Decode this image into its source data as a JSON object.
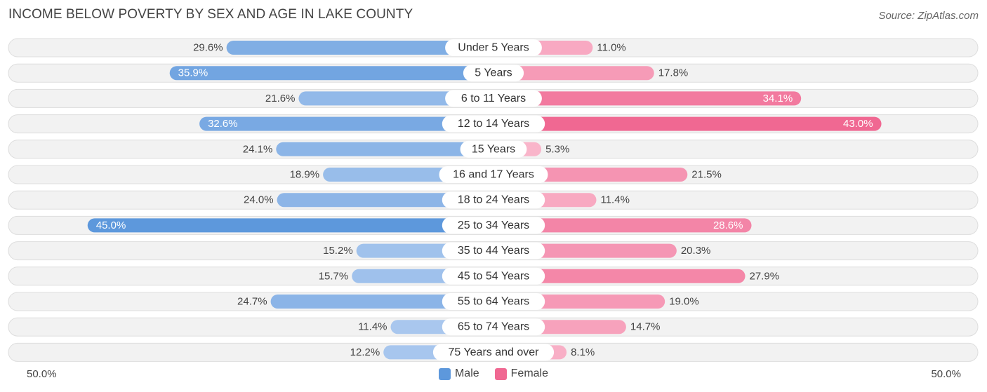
{
  "chart_data": {
    "type": "bar",
    "orientation": "horizontal-diverging",
    "title": "INCOME BELOW POVERTY BY SEX AND AGE IN LAKE COUNTY",
    "source": "Source: ZipAtlas.com",
    "categories": [
      "Under 5 Years",
      "5 Years",
      "6 to 11 Years",
      "12 to 14 Years",
      "15 Years",
      "16 and 17 Years",
      "18 to 24 Years",
      "25 to 34 Years",
      "35 to 44 Years",
      "45 to 54 Years",
      "55 to 64 Years",
      "65 to 74 Years",
      "75 Years and over"
    ],
    "series": [
      {
        "name": "Male",
        "values": [
          29.6,
          35.9,
          21.6,
          32.6,
          24.1,
          18.9,
          24.0,
          45.0,
          15.2,
          15.7,
          24.7,
          11.4,
          12.2
        ],
        "labels": [
          "29.6%",
          "35.9%",
          "21.6%",
          "32.6%",
          "24.1%",
          "18.9%",
          "24.0%",
          "45.0%",
          "15.2%",
          "15.7%",
          "24.7%",
          "11.4%",
          "12.2%"
        ]
      },
      {
        "name": "Female",
        "values": [
          11.0,
          17.8,
          34.1,
          43.0,
          5.3,
          21.5,
          11.4,
          28.6,
          20.3,
          27.9,
          19.0,
          14.7,
          8.1
        ],
        "labels": [
          "11.0%",
          "17.8%",
          "34.1%",
          "43.0%",
          "5.3%",
          "21.5%",
          "11.4%",
          "28.6%",
          "20.3%",
          "27.9%",
          "19.0%",
          "14.7%",
          "8.1%"
        ]
      }
    ],
    "xlim": [
      -50,
      50
    ],
    "axis_left_label": "50.0%",
    "axis_right_label": "50.0%",
    "legend_position": "bottom-center"
  },
  "colors": {
    "male_light": "#a9c7ee",
    "male_dark": "#5d98dc",
    "female_light": "#f9b5ca",
    "female_dark": "#f06892",
    "track": "#f2f2f2",
    "track_border": "#dddddd"
  },
  "legend": {
    "male": "Male",
    "female": "Female"
  }
}
